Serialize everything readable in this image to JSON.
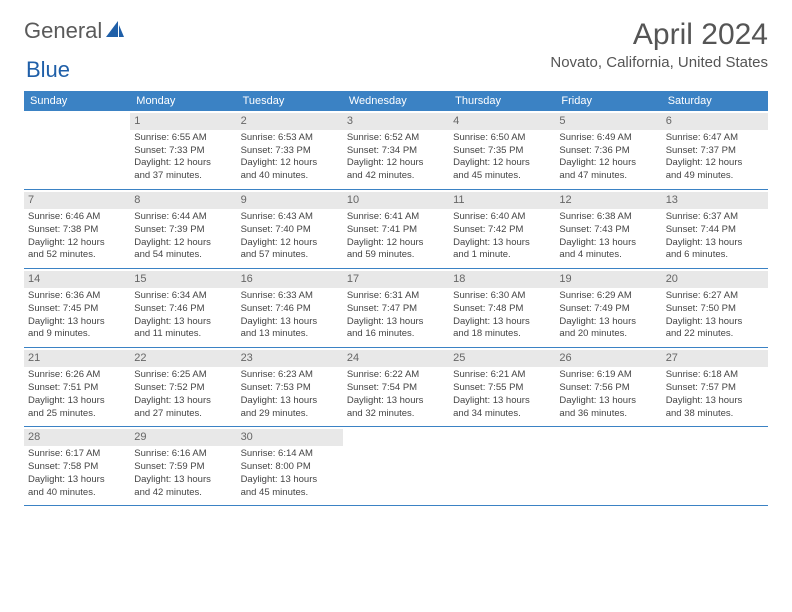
{
  "logo": {
    "text1": "General",
    "text2": "Blue"
  },
  "title": "April 2024",
  "location": "Novato, California, United States",
  "colors": {
    "header_bg": "#3b82c4",
    "header_text": "#ffffff",
    "daynum_bg": "#e8e8e8",
    "daynum_text": "#666666",
    "body_text": "#444444",
    "rule": "#3b82c4",
    "logo_gray": "#5a5a5a",
    "logo_blue": "#1f5fa8"
  },
  "day_headers": [
    "Sunday",
    "Monday",
    "Tuesday",
    "Wednesday",
    "Thursday",
    "Friday",
    "Saturday"
  ],
  "weeks": [
    [
      {
        "empty": true
      },
      {
        "n": "1",
        "sr": "6:55 AM",
        "ss": "7:33 PM",
        "dl": "12 hours and 37 minutes."
      },
      {
        "n": "2",
        "sr": "6:53 AM",
        "ss": "7:33 PM",
        "dl": "12 hours and 40 minutes."
      },
      {
        "n": "3",
        "sr": "6:52 AM",
        "ss": "7:34 PM",
        "dl": "12 hours and 42 minutes."
      },
      {
        "n": "4",
        "sr": "6:50 AM",
        "ss": "7:35 PM",
        "dl": "12 hours and 45 minutes."
      },
      {
        "n": "5",
        "sr": "6:49 AM",
        "ss": "7:36 PM",
        "dl": "12 hours and 47 minutes."
      },
      {
        "n": "6",
        "sr": "6:47 AM",
        "ss": "7:37 PM",
        "dl": "12 hours and 49 minutes."
      }
    ],
    [
      {
        "n": "7",
        "sr": "6:46 AM",
        "ss": "7:38 PM",
        "dl": "12 hours and 52 minutes."
      },
      {
        "n": "8",
        "sr": "6:44 AM",
        "ss": "7:39 PM",
        "dl": "12 hours and 54 minutes."
      },
      {
        "n": "9",
        "sr": "6:43 AM",
        "ss": "7:40 PM",
        "dl": "12 hours and 57 minutes."
      },
      {
        "n": "10",
        "sr": "6:41 AM",
        "ss": "7:41 PM",
        "dl": "12 hours and 59 minutes."
      },
      {
        "n": "11",
        "sr": "6:40 AM",
        "ss": "7:42 PM",
        "dl": "13 hours and 1 minute."
      },
      {
        "n": "12",
        "sr": "6:38 AM",
        "ss": "7:43 PM",
        "dl": "13 hours and 4 minutes."
      },
      {
        "n": "13",
        "sr": "6:37 AM",
        "ss": "7:44 PM",
        "dl": "13 hours and 6 minutes."
      }
    ],
    [
      {
        "n": "14",
        "sr": "6:36 AM",
        "ss": "7:45 PM",
        "dl": "13 hours and 9 minutes."
      },
      {
        "n": "15",
        "sr": "6:34 AM",
        "ss": "7:46 PM",
        "dl": "13 hours and 11 minutes."
      },
      {
        "n": "16",
        "sr": "6:33 AM",
        "ss": "7:46 PM",
        "dl": "13 hours and 13 minutes."
      },
      {
        "n": "17",
        "sr": "6:31 AM",
        "ss": "7:47 PM",
        "dl": "13 hours and 16 minutes."
      },
      {
        "n": "18",
        "sr": "6:30 AM",
        "ss": "7:48 PM",
        "dl": "13 hours and 18 minutes."
      },
      {
        "n": "19",
        "sr": "6:29 AM",
        "ss": "7:49 PM",
        "dl": "13 hours and 20 minutes."
      },
      {
        "n": "20",
        "sr": "6:27 AM",
        "ss": "7:50 PM",
        "dl": "13 hours and 22 minutes."
      }
    ],
    [
      {
        "n": "21",
        "sr": "6:26 AM",
        "ss": "7:51 PM",
        "dl": "13 hours and 25 minutes."
      },
      {
        "n": "22",
        "sr": "6:25 AM",
        "ss": "7:52 PM",
        "dl": "13 hours and 27 minutes."
      },
      {
        "n": "23",
        "sr": "6:23 AM",
        "ss": "7:53 PM",
        "dl": "13 hours and 29 minutes."
      },
      {
        "n": "24",
        "sr": "6:22 AM",
        "ss": "7:54 PM",
        "dl": "13 hours and 32 minutes."
      },
      {
        "n": "25",
        "sr": "6:21 AM",
        "ss": "7:55 PM",
        "dl": "13 hours and 34 minutes."
      },
      {
        "n": "26",
        "sr": "6:19 AM",
        "ss": "7:56 PM",
        "dl": "13 hours and 36 minutes."
      },
      {
        "n": "27",
        "sr": "6:18 AM",
        "ss": "7:57 PM",
        "dl": "13 hours and 38 minutes."
      }
    ],
    [
      {
        "n": "28",
        "sr": "6:17 AM",
        "ss": "7:58 PM",
        "dl": "13 hours and 40 minutes."
      },
      {
        "n": "29",
        "sr": "6:16 AM",
        "ss": "7:59 PM",
        "dl": "13 hours and 42 minutes."
      },
      {
        "n": "30",
        "sr": "6:14 AM",
        "ss": "8:00 PM",
        "dl": "13 hours and 45 minutes."
      },
      {
        "empty": true
      },
      {
        "empty": true
      },
      {
        "empty": true
      },
      {
        "empty": true
      }
    ]
  ],
  "labels": {
    "sunrise_prefix": "Sunrise: ",
    "sunset_prefix": "Sunset: ",
    "daylight_prefix": "Daylight: "
  }
}
